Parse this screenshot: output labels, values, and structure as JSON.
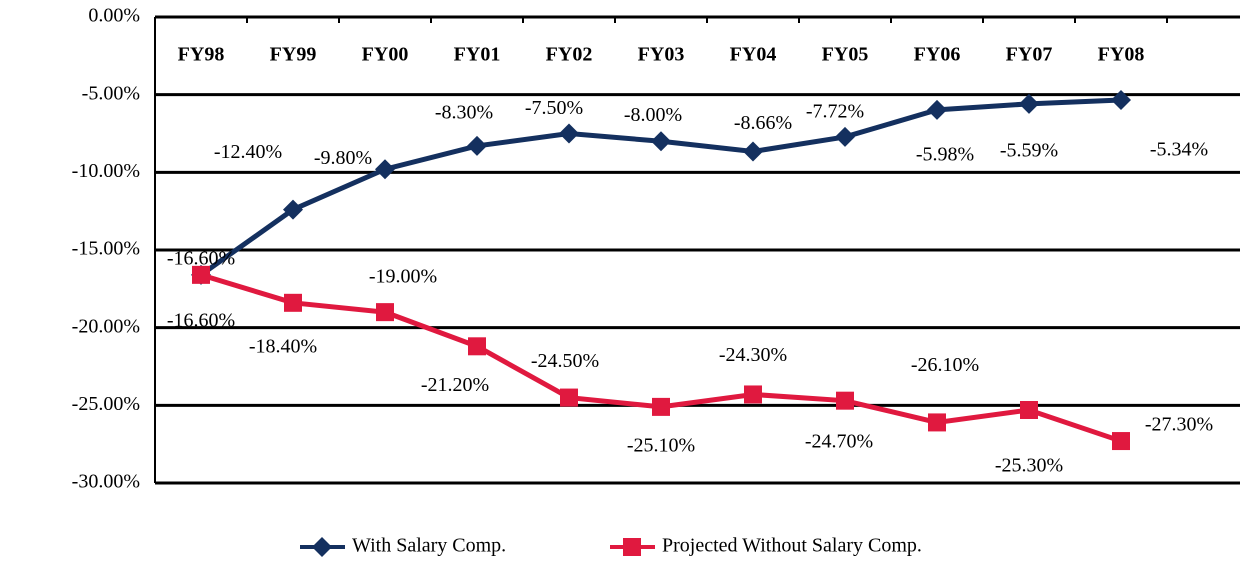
{
  "chart_data": {
    "type": "line",
    "categories": [
      "FY98",
      "FY99",
      "FY00",
      "FY01",
      "FY02",
      "FY03",
      "FY04",
      "FY05",
      "FY06",
      "FY07",
      "FY08"
    ],
    "series": [
      {
        "name": "With Salary Comp.",
        "color": "#14305f",
        "marker": "diamond",
        "values": [
          -16.6,
          -12.4,
          -9.8,
          -8.3,
          -7.5,
          -8.0,
          -8.66,
          -7.72,
          -5.98,
          -5.59,
          -5.34
        ],
        "value_labels": [
          "-16.60%",
          "-12.40%",
          "-9.80%",
          "-8.30%",
          "-7.50%",
          "-8.00%",
          "-8.66%",
          "-7.72%",
          "-5.98%",
          "-5.59%",
          "-5.34%"
        ]
      },
      {
        "name": "Projected Without Salary Comp.",
        "color": "#e0193f",
        "marker": "square",
        "values": [
          -16.6,
          -18.4,
          -19.0,
          -21.2,
          -24.5,
          -25.1,
          -24.3,
          -24.7,
          -26.1,
          -25.3,
          -27.3
        ],
        "value_labels": [
          "-16.60%",
          "-18.40%",
          "-19.00%",
          "-21.20%",
          "-24.50%",
          "-25.10%",
          "-24.30%",
          "-24.70%",
          "-26.10%",
          "-25.30%",
          "-27.30%"
        ]
      }
    ],
    "ylim": [
      -30,
      0
    ],
    "yticks": [
      {
        "value": 0,
        "label": "0.00%"
      },
      {
        "value": -5,
        "label": "-5.00%"
      },
      {
        "value": -10,
        "label": "-10.00%"
      },
      {
        "value": -15,
        "label": "-15.00%"
      },
      {
        "value": -20,
        "label": "-20.00%"
      },
      {
        "value": -25,
        "label": "-25.00%"
      },
      {
        "value": -30,
        "label": "-30.00%"
      }
    ],
    "grid": true,
    "legend": "bottom"
  }
}
